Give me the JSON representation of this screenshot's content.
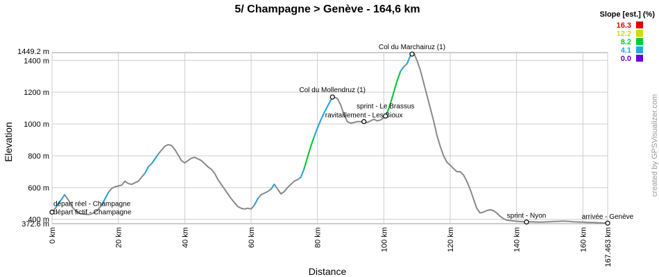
{
  "chart_data": {
    "type": "line",
    "title": "5/ Champagne > Genève - 164,6 km",
    "xlabel": "Distance",
    "ylabel": "Elevation",
    "xlim": [
      0,
      167.463
    ],
    "ylim": [
      372.6,
      1449.2
    ],
    "x_ticks": [
      "0 km",
      "20 km",
      "40 km",
      "60 km",
      "80 km",
      "100 km",
      "120 km",
      "140 km",
      "160 km",
      "167.463 km"
    ],
    "x_tick_values": [
      0,
      20,
      40,
      60,
      80,
      100,
      120,
      140,
      160,
      167.463
    ],
    "y_ticks": [
      "400 m",
      "600 m",
      "800 m",
      "1000 m",
      "1200 m",
      "1400 m"
    ],
    "y_tick_values": [
      400,
      600,
      800,
      1000,
      1200,
      1400
    ],
    "y_min_label": "372.6 m",
    "y_max_label": "1449.2 m",
    "grid": true,
    "series": [
      {
        "x": [
          0,
          1,
          2,
          3,
          3.8,
          5,
          6,
          7,
          8,
          9,
          10,
          11,
          12,
          13,
          14,
          15,
          16,
          17,
          18,
          19,
          20,
          21,
          22,
          23,
          24,
          25,
          26,
          27,
          28,
          29,
          30,
          31,
          32,
          33,
          34,
          35,
          36,
          37,
          38,
          39,
          40,
          41,
          42,
          43,
          44,
          45,
          46,
          47,
          48,
          49,
          50,
          51,
          52,
          53,
          54,
          55,
          56,
          57,
          58,
          59,
          60,
          61,
          62,
          63,
          64,
          65,
          66,
          67,
          68,
          69,
          70,
          71,
          72,
          73,
          74,
          75,
          76,
          77,
          78,
          79,
          80,
          81,
          82,
          83,
          84,
          85,
          86,
          87,
          88,
          89,
          90,
          91,
          92,
          93,
          94,
          95,
          96,
          97,
          98,
          99,
          100,
          101,
          102,
          103,
          104,
          105,
          106,
          107,
          108,
          109,
          110,
          111,
          112,
          113,
          114,
          115,
          116,
          117,
          118,
          119,
          120,
          121,
          122,
          123,
          124,
          125,
          126,
          127,
          128,
          129,
          130,
          131,
          132,
          133,
          134,
          135,
          136,
          137,
          138,
          139,
          140,
          141,
          142,
          143,
          144,
          145,
          146,
          147,
          148,
          149,
          150,
          151,
          152,
          153,
          154,
          155,
          156,
          157,
          158,
          159,
          160,
          161,
          162,
          163,
          164,
          165,
          166,
          167.463
        ],
        "y": [
          445,
          470,
          500,
          530,
          555,
          520,
          480,
          455,
          440,
          435,
          432,
          430,
          435,
          445,
          465,
          490,
          530,
          570,
          595,
          605,
          610,
          615,
          640,
          625,
          620,
          630,
          640,
          665,
          690,
          730,
          750,
          780,
          810,
          835,
          860,
          870,
          865,
          840,
          805,
          770,
          755,
          770,
          785,
          790,
          780,
          770,
          750,
          730,
          715,
          690,
          650,
          620,
          590,
          560,
          530,
          505,
          480,
          470,
          465,
          470,
          465,
          490,
          530,
          555,
          565,
          575,
          590,
          620,
          590,
          560,
          575,
          600,
          620,
          640,
          650,
          665,
          720,
          790,
          860,
          920,
          975,
          1025,
          1070,
          1110,
          1150,
          1170,
          1160,
          1120,
          1060,
          1015,
          1005,
          1010,
          1015,
          1015,
          1010,
          1010,
          1020,
          1030,
          1020,
          1025,
          1040,
          1070,
          1130,
          1200,
          1270,
          1330,
          1360,
          1380,
          1430,
          1449,
          1400,
          1340,
          1260,
          1180,
          1100,
          1020,
          930,
          860,
          800,
          760,
          740,
          720,
          700,
          700,
          680,
          640,
          590,
          530,
          470,
          440,
          445,
          455,
          460,
          455,
          440,
          420,
          405,
          395,
          392,
          390,
          388,
          386,
          385,
          384,
          385,
          384,
          383,
          382,
          383,
          384,
          385,
          386,
          387,
          388,
          389,
          388,
          387,
          385,
          384,
          383,
          382,
          381,
          380,
          380,
          379,
          378,
          377,
          376
        ]
      }
    ],
    "annotations": [
      {
        "x": 0,
        "y": 445,
        "label": "départ réel - Champagne"
      },
      {
        "x": 0,
        "y": 445,
        "label": "départ fictif - Champagne"
      },
      {
        "x": 84.5,
        "y": 1170,
        "label": "Col du Mollendruz (1)"
      },
      {
        "x": 94,
        "y": 1015,
        "label": "ravitaillement - Les Bioux"
      },
      {
        "x": 100.5,
        "y": 1050,
        "label": "sprint - Le Brassus"
      },
      {
        "x": 108.5,
        "y": 1440,
        "label": "Col du Marchairuz (1)"
      },
      {
        "x": 143,
        "y": 383,
        "label": "sprint - Nyon"
      },
      {
        "x": 167.463,
        "y": 376,
        "label": "arrivée - Genève"
      }
    ],
    "legend": {
      "title": "Slope [est.] (%)",
      "placement": "top-right",
      "entries": [
        {
          "label": "16.3",
          "color": "#dd0000"
        },
        {
          "label": "12.2",
          "color": "#ccdd00"
        },
        {
          "label": "8.2",
          "color": "#00cc33"
        },
        {
          "label": "4.1",
          "color": "#22aadd"
        },
        {
          "label": "0.0",
          "color": "#6600dd"
        }
      ]
    }
  },
  "credit": "created by GPSVisualizer.com"
}
